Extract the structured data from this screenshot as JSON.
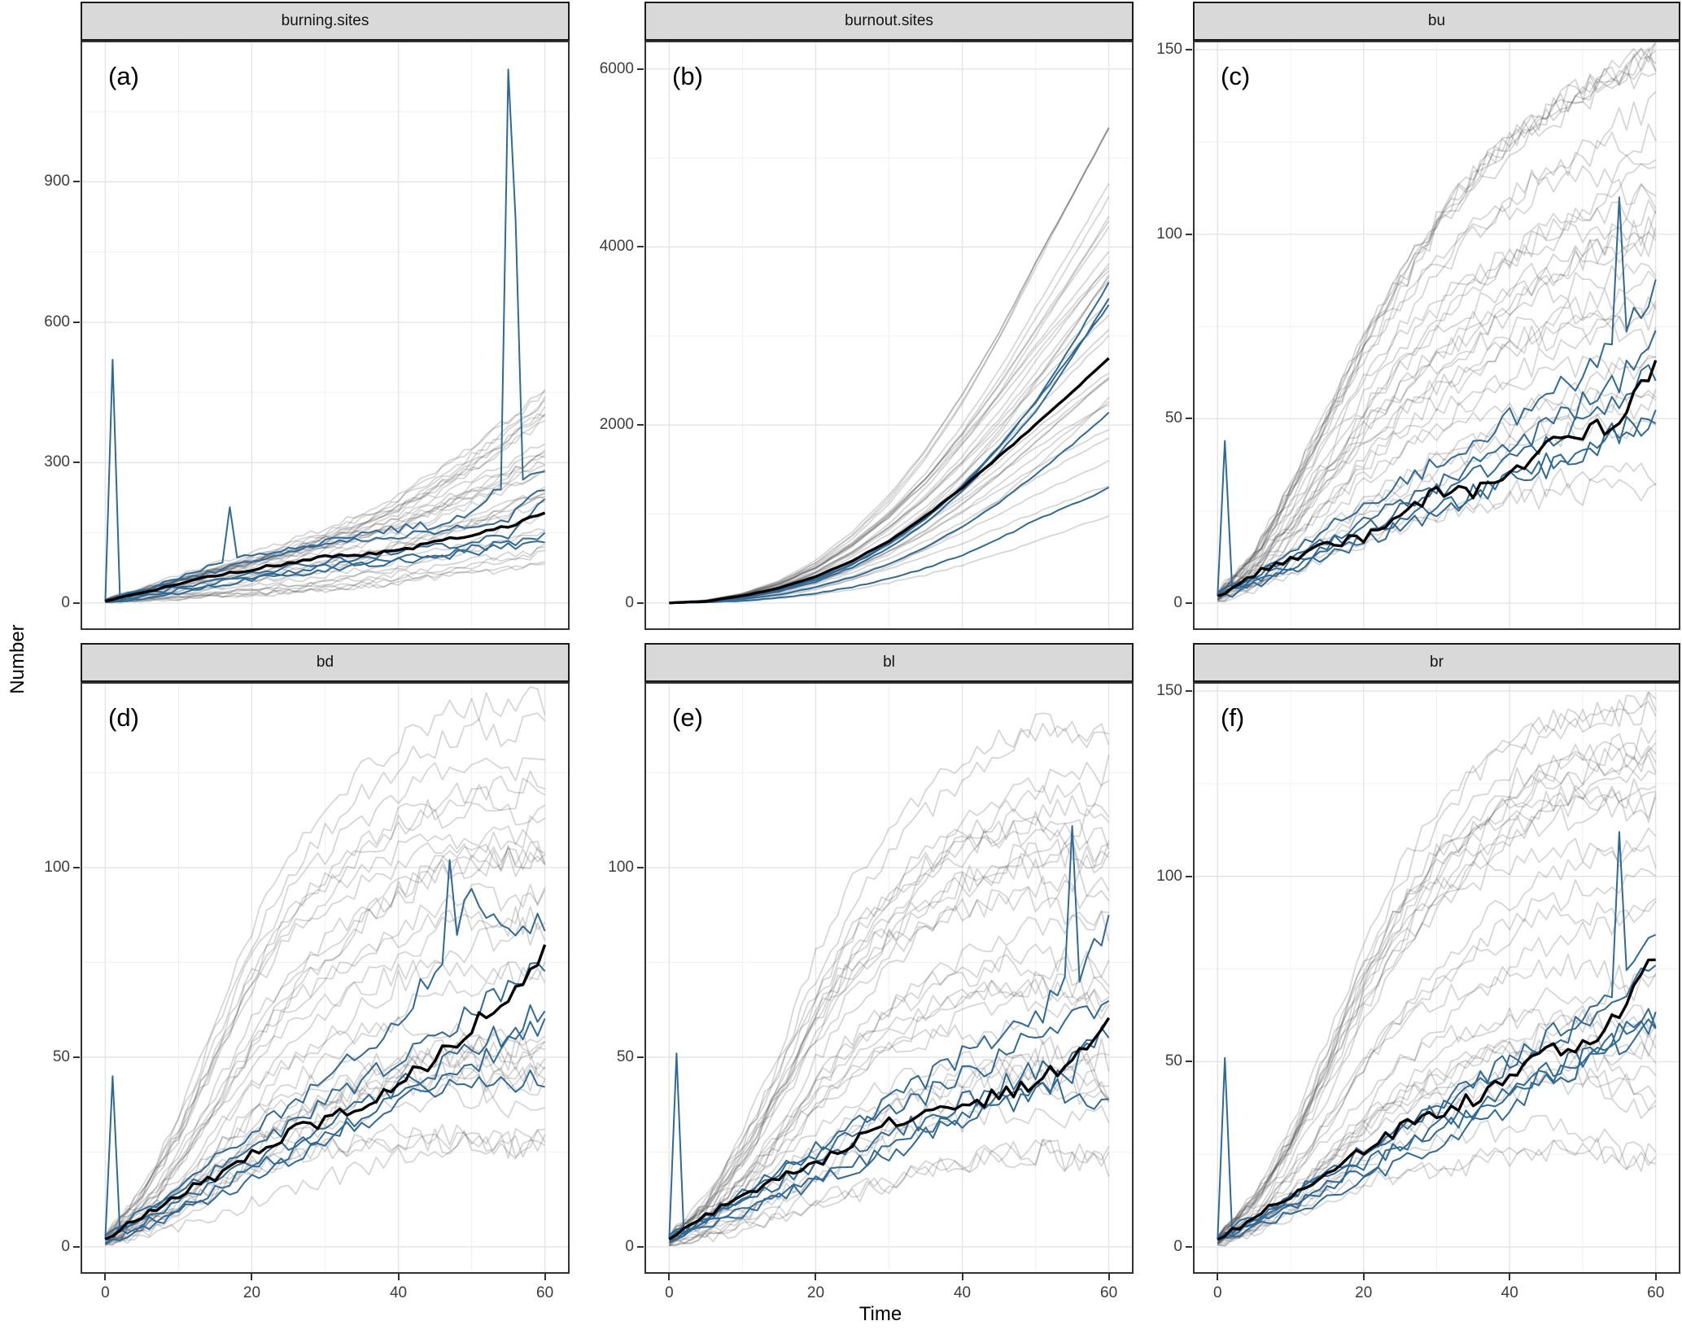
{
  "figure": {
    "y_axis_title": "Number",
    "x_axis_title": "Time"
  },
  "colors": {
    "ensemble_line": "#c9c9c9",
    "ensemble_stroke_rgba": "rgba(60,60,60,0.22)",
    "highlight_line": "#2e6a97",
    "median_line": "#000000",
    "strip_background": "#d9d9d9",
    "strip_border": "#1b1b1b",
    "panel_border": "#333333",
    "grid_major": "#e4e4e4",
    "grid_minor": "#f1f1f1",
    "tick_text": "#3d3d3d"
  },
  "chart_data": {
    "type": "line",
    "title": "",
    "xlabel": "Time",
    "ylabel": "Number",
    "legend_position": "none",
    "grid": "major+minor",
    "x": {
      "ticks": [
        0,
        20,
        40,
        60
      ],
      "minor_ticks": [
        10,
        30,
        50
      ],
      "lim": [
        -3.15,
        63.15
      ],
      "tmax": 60
    },
    "anchor_step": 5,
    "series_info": {
      "ensemble": {
        "desc": "individual stochastic simulation runs",
        "count": 32
      },
      "highlight": {
        "desc": "highlighted simulation runs",
        "count": 5
      },
      "median": {
        "desc": "ensemble mean trajectory",
        "count": 1
      }
    },
    "panels": [
      {
        "id": "a",
        "strip": "burning.sites",
        "tag": "(a)",
        "ylim": [
          -54,
          1198
        ],
        "yticks": [
          0,
          300,
          600,
          900
        ],
        "yminor": [
          150,
          450,
          750,
          1050
        ],
        "median_anchors": [
          4,
          22,
          42,
          58,
          72,
          86,
          98,
          104,
          112,
          128,
          148,
          162,
          195
        ],
        "highlight": [
          {
            "anchors": [
              3,
              18,
              34,
              48,
              62,
              76,
              88,
              98,
              108,
              118,
              132,
              148,
              230
            ],
            "spikes": [
              {
                "t": 1,
                "v": 520
              }
            ]
          },
          {
            "anchors": [
              5,
              28,
              48,
              68,
              88,
              108,
              128,
              148,
              158,
              168,
              188,
              260,
              275
            ],
            "spikes": [
              {
                "t": 55,
                "v": 1140
              },
              {
                "t": 56,
                "v": 820
              }
            ]
          },
          {
            "anchors": [
              3,
              24,
              55,
              85,
              105,
              115,
              125,
              135,
              145,
              155,
              165,
              178,
              248
            ],
            "spikes": [
              {
                "t": 17,
                "v": 205
              }
            ]
          },
          {
            "anchors": [
              2,
              14,
              28,
              42,
              56,
              66,
              76,
              86,
              96,
              106,
              116,
              128,
              150
            ],
            "spikes": []
          },
          {
            "anchors": [
              2,
              10,
              22,
              36,
              50,
              60,
              70,
              80,
              90,
              100,
              110,
              122,
              136
            ],
            "spikes": []
          }
        ],
        "ensemble": {
          "upper": [
            8,
            34,
            58,
            84,
            108,
            132,
            158,
            192,
            228,
            276,
            326,
            382,
            442
          ],
          "lower": [
            1,
            4,
            8,
            12,
            16,
            20,
            25,
            32,
            40,
            50,
            60,
            68,
            78
          ]
        },
        "noise": {
          "median": 6,
          "highlight": 12,
          "ensemble": 10
        },
        "seed": 11
      },
      {
        "id": "b",
        "strip": "burnout.sites",
        "tag": "(b)",
        "ylim": [
          -285,
          6300
        ],
        "yticks": [
          0,
          2000,
          4000,
          6000
        ],
        "yminor": [
          1000,
          3000,
          5000
        ],
        "median_anchors": [
          0,
          18,
          78,
          168,
          295,
          475,
          695,
          975,
          1295,
          1645,
          2000,
          2365,
          2750
        ],
        "highlight": [
          {
            "anchors": [
              0,
              15,
              60,
              140,
              260,
              430,
              660,
              950,
              1300,
              1750,
              2260,
              2900,
              3600
            ],
            "spikes": []
          },
          {
            "anchors": [
              0,
              14,
              55,
              130,
              240,
              400,
              620,
              900,
              1250,
              1680,
              2150,
              2760,
              3430
            ],
            "spikes": []
          },
          {
            "anchors": [
              0,
              18,
              65,
              150,
              270,
              440,
              670,
              960,
              1320,
              1760,
              2250,
              2800,
              3340
            ],
            "spikes": []
          },
          {
            "anchors": [
              0,
              10,
              40,
              95,
              175,
              290,
              440,
              630,
              860,
              1130,
              1440,
              1780,
              2140
            ],
            "spikes": []
          },
          {
            "anchors": [
              0,
              6,
              25,
              60,
              110,
              180,
              270,
              390,
              540,
              720,
              930,
              1105,
              1290
            ],
            "spikes": []
          }
        ],
        "ensemble": {
          "upper": [
            0,
            30,
            110,
            250,
            470,
            780,
            1180,
            1680,
            2280,
            2960,
            3720,
            4460,
            5200
          ],
          "lower": [
            0,
            4,
            15,
            35,
            65,
            105,
            155,
            215,
            290,
            380,
            480,
            590,
            700
          ]
        },
        "noise": {
          "median": 8,
          "highlight": 10,
          "ensemble": 12
        },
        "seed": 22
      },
      {
        "id": "c",
        "strip": "bu",
        "tag": "(c)",
        "ylim": [
          -6.8,
          152
        ],
        "yticks": [
          0,
          50,
          100,
          150
        ],
        "yminor": [
          25,
          75,
          125
        ],
        "median_anchors": [
          2,
          8,
          12,
          16,
          18,
          24,
          30,
          30,
          35,
          42,
          45,
          50,
          64
        ],
        "highlight": [
          {
            "anchors": [
              2,
              6,
              10,
              14,
              18,
              22,
              26,
              30,
              34,
              38,
              42,
              46,
              50
            ],
            "spikes": [
              {
                "t": 1,
                "v": 44
              }
            ]
          },
          {
            "anchors": [
              3,
              8,
              14,
              20,
              26,
              32,
              38,
              44,
              50,
              56,
              62,
              74,
              85
            ],
            "spikes": [
              {
                "t": 55,
                "v": 110
              }
            ]
          },
          {
            "anchors": [
              2,
              7,
              12,
              17,
              22,
              27,
              32,
              37,
              42,
              48,
              54,
              60,
              70
            ],
            "spikes": []
          },
          {
            "anchors": [
              2,
              6,
              11,
              16,
              20,
              25,
              30,
              34,
              38,
              44,
              50,
              56,
              62
            ],
            "spikes": []
          },
          {
            "anchors": [
              1,
              5,
              9,
              13,
              17,
              21,
              25,
              29,
              33,
              37,
              41,
              45,
              50
            ],
            "spikes": []
          }
        ],
        "ensemble": {
          "upper": [
            3,
            14,
            32,
            52,
            72,
            88,
            102,
            113,
            122,
            130,
            136,
            141,
            145
          ],
          "lower": [
            0,
            2,
            4,
            7,
            10,
            13,
            16,
            19,
            22,
            25,
            27,
            28,
            29
          ]
        },
        "noise": {
          "median": 3,
          "highlight": 4,
          "ensemble": 4.5
        },
        "seed": 33
      },
      {
        "id": "d",
        "strip": "bd",
        "tag": "(d)",
        "ylim": [
          -6.7,
          148.5
        ],
        "yticks": [
          0,
          50,
          100
        ],
        "yminor": [
          25,
          75,
          125
        ],
        "median_anchors": [
          2,
          8,
          14,
          18,
          24,
          30,
          33,
          38,
          42,
          50,
          58,
          66,
          78
        ],
        "highlight": [
          {
            "anchors": [
              2,
              7,
              12,
              17,
              22,
              27,
              32,
              37,
              42,
              47,
              52,
              57,
              62
            ],
            "spikes": [
              {
                "t": 1,
                "v": 45
              }
            ]
          },
          {
            "anchors": [
              3,
              9,
              16,
              23,
              30,
              37,
              44,
              52,
              60,
              74,
              92,
              82,
              86
            ],
            "spikes": [
              {
                "t": 47,
                "v": 102
              }
            ]
          },
          {
            "anchors": [
              2,
              8,
              14,
              20,
              26,
              32,
              38,
              44,
              50,
              56,
              62,
              68,
              75
            ],
            "spikes": []
          },
          {
            "anchors": [
              2,
              6,
              10,
              15,
              20,
              25,
              30,
              34,
              38,
              42,
              45,
              44,
              46
            ],
            "spikes": []
          },
          {
            "anchors": [
              1,
              5,
              9,
              13,
              18,
              23,
              28,
              33,
              38,
              43,
              48,
              54,
              60
            ],
            "spikes": []
          }
        ],
        "ensemble": {
          "upper": [
            3,
            15,
            34,
            58,
            82,
            100,
            112,
            122,
            130,
            136,
            139,
            140,
            141
          ],
          "lower": [
            0,
            2,
            4,
            7,
            10,
            13,
            16,
            19,
            22,
            24,
            25,
            24,
            26
          ]
        },
        "noise": {
          "median": 3,
          "highlight": 4,
          "ensemble": 4.5
        },
        "seed": 44
      },
      {
        "id": "e",
        "strip": "bl",
        "tag": "(e)",
        "ylim": [
          -6.7,
          148.5
        ],
        "yticks": [
          0,
          50,
          100
        ],
        "yminor": [
          25,
          75,
          125
        ],
        "median_anchors": [
          2,
          8,
          13,
          18,
          22,
          28,
          33,
          35,
          37,
          40,
          42,
          50,
          60
        ],
        "highlight": [
          {
            "anchors": [
              2,
              7,
              12,
              17,
              22,
              26,
              30,
              34,
              38,
              42,
              46,
              50,
              55
            ],
            "spikes": [
              {
                "t": 1,
                "v": 51
              }
            ]
          },
          {
            "anchors": [
              3,
              8,
              14,
              20,
              26,
              32,
              38,
              44,
              50,
              56,
              60,
              70,
              84
            ],
            "spikes": [
              {
                "t": 55,
                "v": 111
              }
            ]
          },
          {
            "anchors": [
              2,
              7,
              13,
              19,
              25,
              30,
              35,
              40,
              45,
              50,
              55,
              60,
              66
            ],
            "spikes": []
          },
          {
            "anchors": [
              2,
              6,
              10,
              14,
              18,
              22,
              26,
              30,
              34,
              38,
              42,
              40,
              38
            ],
            "spikes": []
          },
          {
            "anchors": [
              1,
              5,
              9,
              13,
              17,
              21,
              25,
              29,
              33,
              37,
              41,
              46,
              62
            ],
            "spikes": []
          }
        ],
        "ensemble": {
          "upper": [
            3,
            13,
            30,
            52,
            76,
            95,
            108,
            118,
            126,
            131,
            134,
            133,
            133
          ],
          "lower": [
            0,
            2,
            4,
            6,
            9,
            12,
            15,
            18,
            20,
            22,
            23,
            21,
            20
          ]
        },
        "noise": {
          "median": 3,
          "highlight": 4,
          "ensemble": 4.5
        },
        "seed": 55
      },
      {
        "id": "f",
        "strip": "br",
        "tag": "(f)",
        "ylim": [
          -6.8,
          152
        ],
        "yticks": [
          0,
          50,
          100,
          150
        ],
        "yminor": [
          25,
          75,
          125
        ],
        "median_anchors": [
          2,
          8,
          14,
          20,
          26,
          32,
          36,
          40,
          45,
          52,
          55,
          62,
          80
        ],
        "highlight": [
          {
            "anchors": [
              2,
              7,
              12,
              17,
              22,
              27,
              32,
              37,
              42,
              47,
              52,
              57,
              62
            ],
            "spikes": [
              {
                "t": 1,
                "v": 51
              }
            ]
          },
          {
            "anchors": [
              3,
              8,
              14,
              20,
              26,
              32,
              38,
              44,
              50,
              56,
              62,
              70,
              85
            ],
            "spikes": [
              {
                "t": 55,
                "v": 112
              }
            ]
          },
          {
            "anchors": [
              2,
              7,
              13,
              19,
              25,
              31,
              37,
              43,
              49,
              55,
              60,
              68,
              78
            ],
            "spikes": []
          },
          {
            "anchors": [
              2,
              6,
              11,
              16,
              21,
              26,
              31,
              36,
              41,
              46,
              51,
              56,
              62
            ],
            "spikes": []
          },
          {
            "anchors": [
              1,
              5,
              9,
              13,
              18,
              23,
              28,
              33,
              38,
              44,
              50,
              55,
              60
            ],
            "spikes": []
          }
        ],
        "ensemble": {
          "upper": [
            3,
            14,
            32,
            55,
            80,
            100,
            114,
            124,
            132,
            138,
            140,
            141,
            142
          ],
          "lower": [
            0,
            2,
            4,
            7,
            10,
            13,
            16,
            19,
            22,
            24,
            25,
            23,
            21
          ]
        },
        "noise": {
          "median": 3,
          "highlight": 4,
          "ensemble": 4.5
        },
        "seed": 66
      }
    ]
  }
}
